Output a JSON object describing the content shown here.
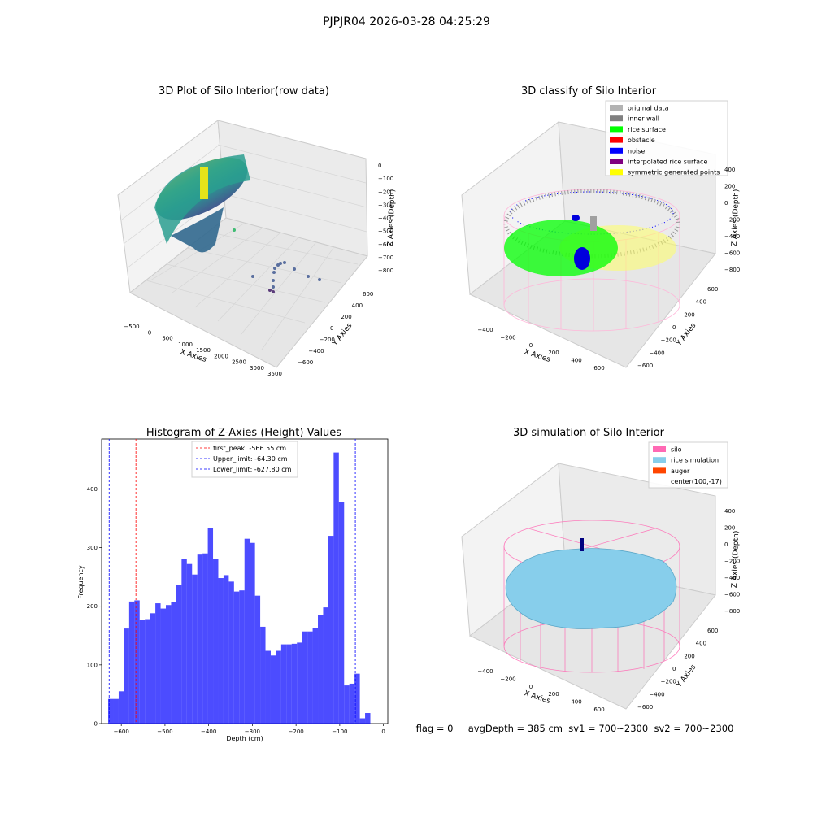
{
  "figure": {
    "suptitle": "PJPJR04 2026-03-28 04:25:29",
    "status_line": "flag = 0     avgDepth = 385 cm  sv1 = 700~2300  sv2 = 700~2300"
  },
  "panel_raw": {
    "title": "3D Plot of Silo Interior(row data)",
    "xlabel": "X Axies",
    "ylabel": "Y Axies",
    "zlabel": "Z Axies (Depth)",
    "xticks": [
      "−500",
      "0",
      "500",
      "1000",
      "1500",
      "2000",
      "2500",
      "3000",
      "3500"
    ],
    "yticks": [
      "600",
      "400",
      "200",
      "0",
      "−200",
      "−400",
      "−600"
    ],
    "zticks": [
      "0",
      "−100",
      "−200",
      "−300",
      "−400",
      "−500",
      "−600",
      "−700",
      "−800"
    ]
  },
  "panel_classify": {
    "title": "3D classify of Silo Interior",
    "xlabel": "X Axies",
    "ylabel": "Y Axies",
    "zlabel": "Z Axies (Depth)",
    "xticks": [
      "−400",
      "−200",
      "0",
      "200",
      "400",
      "600"
    ],
    "yticks": [
      "600",
      "400",
      "200",
      "0",
      "−200",
      "−400",
      "−600"
    ],
    "zticks": [
      "400",
      "200",
      "0",
      "−200",
      "−400",
      "−600",
      "−800"
    ],
    "legend": [
      {
        "label": "original data",
        "color": "#b3b3b3"
      },
      {
        "label": "inner wall",
        "color": "#808080"
      },
      {
        "label": "rice surface",
        "color": "#00ff00"
      },
      {
        "label": "obstacle",
        "color": "#ff0000"
      },
      {
        "label": "noise",
        "color": "#0000ff"
      },
      {
        "label": "interpolated rice surface",
        "color": "#800080"
      },
      {
        "label": "symmetric generated points",
        "color": "#ffff00"
      }
    ]
  },
  "panel_simulation": {
    "title": "3D simulation of Silo Interior",
    "xlabel": "X Axies",
    "ylabel": "Y Axies",
    "zlabel": "Z Axies (Depth)",
    "xticks": [
      "−400",
      "−200",
      "0",
      "200",
      "400",
      "600"
    ],
    "yticks": [
      "600",
      "400",
      "200",
      "0",
      "−200",
      "−400",
      "−600"
    ],
    "zticks": [
      "400",
      "200",
      "0",
      "−200",
      "−400",
      "−600",
      "−800"
    ],
    "legend": [
      {
        "label": "silo",
        "color": "#ff69b4"
      },
      {
        "label": "rice simulation",
        "color": "#87ceeb"
      },
      {
        "label": "auger",
        "color": "#ff4500"
      },
      {
        "label": "center(100,-17)",
        "color": null
      }
    ]
  },
  "chart_data": [
    {
      "type": "bar",
      "title": "Histogram of Z-Axies (Height) Values",
      "xlabel": "Depth (cm)",
      "ylabel": "Frequency",
      "xlim": [
        -645,
        10
      ],
      "ylim": [
        0,
        485
      ],
      "xticks": [
        -600,
        -500,
        -400,
        -300,
        -200,
        -100,
        0
      ],
      "yticks": [
        0,
        100,
        200,
        300,
        400
      ],
      "bin_start": -630,
      "bin_width": 12,
      "values": [
        42,
        42,
        55,
        162,
        208,
        210,
        176,
        178,
        188,
        205,
        196,
        202,
        207,
        236,
        280,
        272,
        254,
        288,
        290,
        333,
        280,
        248,
        253,
        242,
        225,
        227,
        315,
        308,
        218,
        165,
        124,
        116,
        124,
        135,
        135,
        136,
        138,
        157,
        157,
        163,
        185,
        198,
        320,
        462,
        377,
        65,
        68,
        85,
        9,
        18
      ],
      "color": "#0000ff",
      "lines": [
        {
          "label": "first_peak: -566.55 cm",
          "x": -566.55,
          "color": "#ff0000"
        },
        {
          "label": "Upper_limit: -64.30 cm",
          "x": -64.3,
          "color": "#0000ff"
        },
        {
          "label": "Lower_limit: -627.80 cm",
          "x": -627.8,
          "color": "#0000ff"
        }
      ],
      "legend_position": "upper center"
    }
  ]
}
